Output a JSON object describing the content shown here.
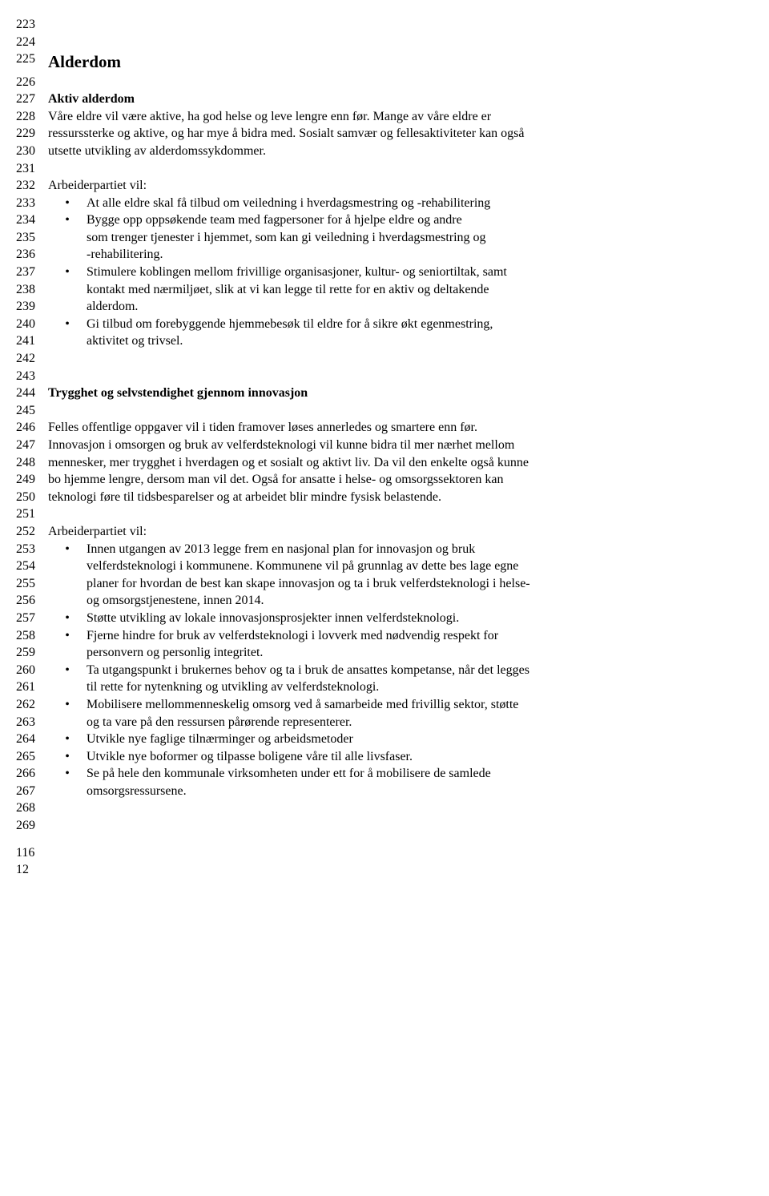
{
  "lines": {
    "223": "",
    "224": "",
    "225": "Alderdom",
    "226": "",
    "227": "Aktiv alderdom",
    "228": "Våre eldre vil være aktive, ha god helse og leve lengre enn før. Mange av våre eldre er",
    "229": "ressurssterke og aktive, og har mye å bidra med. Sosialt samvær og fellesaktiviteter kan også",
    "230": "utsette utvikling av alderdomssykdommer.",
    "231": "",
    "232": "Arbeiderpartiet vil:",
    "244": "Trygghet og selvstendighet gjennom innovasjon",
    "245": "",
    "246": "Felles offentlige oppgaver vil i tiden framover løses annerledes og smartere enn før.",
    "247": "Innovasjon i omsorgen og bruk av velferdsteknologi vil kunne bidra til mer nærhet mellom",
    "248": "mennesker, mer trygghet i hverdagen og et sosialt og aktivt liv. Da vil den enkelte også kunne",
    "249": "bo hjemme lengre, dersom man vil det. Også for ansatte i helse- og omsorgssektoren kan",
    "250": "teknologi føre til tidsbesparelser og at arbeidet blir mindre fysisk belastende.",
    "251": "",
    "252": "Arbeiderpartiet vil:"
  },
  "bullets1": [
    {
      "ln": "233",
      "marker": "•",
      "text": "At alle eldre skal få tilbud om veiledning i hverdagsmestring og -rehabilitering"
    },
    {
      "ln": "234",
      "marker": "•",
      "text": "Bygge opp oppsøkende team med fagpersoner for å hjelpe eldre og andre"
    },
    {
      "ln": "235",
      "marker": "",
      "text": "som trenger tjenester i hjemmet, som kan gi veiledning i hverdagsmestring og"
    },
    {
      "ln": "236",
      "marker": "",
      "text": "-rehabilitering."
    },
    {
      "ln": "237",
      "marker": "•",
      "text": "Stimulere koblingen mellom frivillige organisasjoner, kultur- og seniortiltak, samt"
    },
    {
      "ln": "238",
      "marker": "",
      "text": "kontakt med nærmiljøet, slik at vi kan legge til rette for en aktiv og deltakende"
    },
    {
      "ln": "239",
      "marker": "",
      "text": "alderdom."
    },
    {
      "ln": "240",
      "marker": "•",
      "text": "Gi tilbud om forebyggende hjemmebesøk til eldre for å sikre økt egenmestring,"
    },
    {
      "ln": "241",
      "marker": "",
      "text": "aktivitet og trivsel."
    },
    {
      "ln": "242",
      "marker": "",
      "text": ""
    },
    {
      "ln": "243",
      "marker": "",
      "text": ""
    }
  ],
  "bullets2": [
    {
      "ln": "253",
      "marker": "•",
      "text": "Innen utgangen av 2013 legge frem en nasjonal plan for innovasjon og bruk"
    },
    {
      "ln": "254",
      "marker": "",
      "text": "velferdsteknologi i kommunene. Kommunene vil på grunnlag av dette bes lage egne"
    },
    {
      "ln": "255",
      "marker": "",
      "text": "planer for hvordan de best kan skape innovasjon og ta i bruk velferdsteknologi i helse-"
    },
    {
      "ln": "256",
      "marker": "",
      "text": "og omsorgstjenestene, innen 2014."
    },
    {
      "ln": "257",
      "marker": "•",
      "text": "Støtte utvikling av lokale innovasjonsprosjekter innen velferdsteknologi."
    },
    {
      "ln": "258",
      "marker": "•",
      "text": "Fjerne hindre for bruk av velferdsteknologi i lovverk med nødvendig respekt for"
    },
    {
      "ln": "259",
      "marker": "",
      "text": "personvern og personlig integritet."
    },
    {
      "ln": "260",
      "marker": "•",
      "text": "Ta utgangspunkt i brukernes behov og ta i bruk de ansattes kompetanse, når det legges"
    },
    {
      "ln": "261",
      "marker": "",
      "text": "til rette for nytenkning og utvikling av velferdsteknologi."
    },
    {
      "ln": "262",
      "marker": "•",
      "text": " Mobilisere mellommenneskelig omsorg ved å samarbeide med frivillig sektor,  støtte"
    },
    {
      "ln": "263",
      "marker": "",
      "text": "og ta vare på den ressursen pårørende representerer."
    },
    {
      "ln": "264",
      "marker": "•",
      "text": "Utvikle nye faglige tilnærminger og arbeidsmetoder"
    },
    {
      "ln": "265",
      "marker": "•",
      "text": "Utvikle nye boformer og tilpasse boligene våre til alle livsfaser."
    },
    {
      "ln": "266",
      "marker": "•",
      "text": "Se på hele den kommunale virksomheten under ett for å mobilisere de samlede"
    },
    {
      "ln": "267",
      "marker": "",
      "text": "omsorgsressursene."
    },
    {
      "ln": "268",
      "marker": "",
      "text": ""
    },
    {
      "ln": "269",
      "marker": "",
      "text": ""
    }
  ],
  "footer": {
    "a": "116",
    "b": "12"
  },
  "line_numbers": {
    "l223": "223",
    "l224": "224",
    "l225": "225",
    "l226": "226",
    "l227": "227",
    "l228": "228",
    "l229": "229",
    "l230": "230",
    "l231": "231",
    "l232": "232",
    "l244": "244",
    "l245": "245",
    "l246": "246",
    "l247": "247",
    "l248": "248",
    "l249": "249",
    "l250": "250",
    "l251": "251",
    "l252": "252"
  }
}
